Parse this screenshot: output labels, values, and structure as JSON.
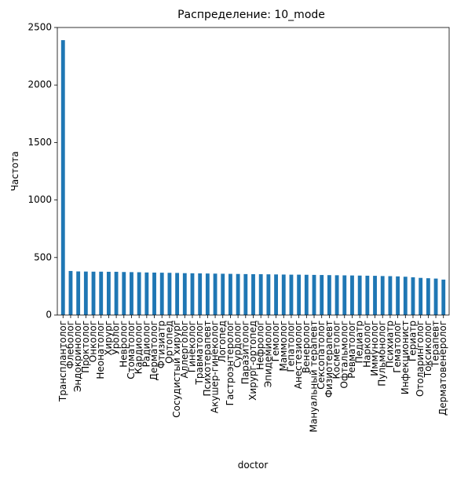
{
  "chart_data": {
    "type": "bar",
    "title": "Распределение: 10_mode",
    "xlabel": "doctor",
    "ylabel": "Частота",
    "ylim": [
      0,
      2500
    ],
    "yticks": [
      0,
      500,
      1000,
      1500,
      2000,
      2500
    ],
    "grid": false,
    "legend": "none",
    "bar_color": "#1f77b4",
    "categories": [
      "Трансплантолог",
      "Флеболог",
      "Эндокринолог",
      "Проктолог",
      "Онколог",
      "Неонатолог",
      "Хирург",
      "Уролог",
      "Невролог",
      "Стоматолог",
      "Кардиолог",
      "Радиолог",
      "Дерматолог",
      "Фтизиатр",
      "Ортопед",
      "Сосудистый хирург",
      "Аллерголог",
      "Гинеколог",
      "Травматолог",
      "Психотерапевт",
      "Акушер-гинеколог",
      "Логопед",
      "Гастроэнтеролог",
      "Сурдолог",
      "Паразитолог",
      "Хирург-ортопед",
      "Нефролог",
      "Эпидемиолог",
      "Гемолог",
      "Маммолог",
      "Гепатолог",
      "Анестезиолог",
      "Венеролог",
      "Мануальный терапевт",
      "Сексопатолог",
      "Физиотерапевт",
      "Косметолог",
      "Офтальмолог",
      "Ревматолог",
      "Педиатр",
      "Нарколог",
      "Иммунолог",
      "Пульмонолог",
      "Психиатр",
      "Гематолог",
      "Инфекционист",
      "Гериатр",
      "Отоларинголог",
      "Токсиколог",
      "Терапевт",
      "Дерматовенеролог"
    ],
    "values": [
      2390,
      383,
      379,
      378,
      377,
      377,
      376,
      376,
      374,
      373,
      372,
      370,
      369,
      368,
      367,
      366,
      364,
      363,
      362,
      361,
      360,
      359,
      358,
      357,
      356,
      355,
      355,
      354,
      353,
      352,
      351,
      351,
      350,
      349,
      348,
      347,
      346,
      345,
      344,
      343,
      342,
      341,
      339,
      338,
      336,
      333,
      328,
      323,
      320,
      317,
      308
    ]
  }
}
